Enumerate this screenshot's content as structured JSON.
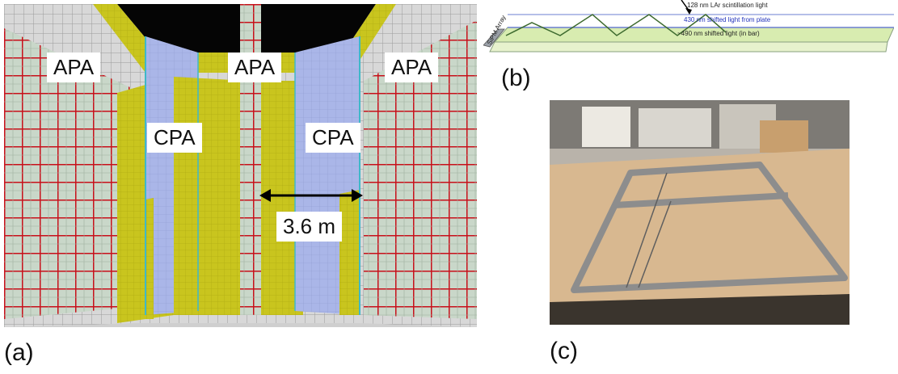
{
  "panel_a": {
    "caption": "(a)",
    "labels": {
      "apa_left": "APA",
      "apa_center": "APA",
      "apa_right": "APA",
      "cpa_left": "CPA",
      "cpa_right": "CPA"
    },
    "dimension": "3.6 m"
  },
  "panel_b": {
    "caption": "(b)",
    "light_128": "128 nm LAr scintillation light",
    "light_430": "430 nm shifted light from plate",
    "light_490": "~490 nm shifted light (in bar)",
    "sipm_label": "SiPM Array"
  },
  "panel_c": {
    "caption": "(c)"
  },
  "colors": {
    "apa_red": "#c8101a",
    "cpa_blue": "#a8b4e6",
    "yellow": "#c8c41a"
  }
}
